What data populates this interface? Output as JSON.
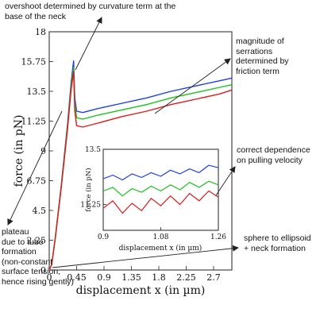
{
  "chart_data": {
    "type": "line",
    "xlabel": "displacement x (in µm)",
    "ylabel": "force (in pN)",
    "xlim": [
      0,
      3.0
    ],
    "ylim": [
      0,
      18
    ],
    "xticks": [
      "0",
      "0.45",
      "0.9",
      "1.35",
      "1.8",
      "2.25",
      "2.7"
    ],
    "xtick_values": [
      0,
      0.45,
      0.9,
      1.35,
      1.8,
      2.25,
      2.7
    ],
    "yticks": [
      "0",
      "2.25",
      "4.5",
      "6.75",
      "9",
      "11.25",
      "13.5",
      "15.75",
      "18"
    ],
    "ytick_values": [
      0,
      2.25,
      4.5,
      6.75,
      9,
      11.25,
      13.5,
      15.75,
      18
    ],
    "grid": false,
    "series": [
      {
        "color": "#1f3fe0",
        "x": [
          0,
          0.04,
          0.1,
          0.2,
          0.3,
          0.36,
          0.4,
          0.42,
          0.45,
          0.55,
          0.8,
          1.2,
          1.6,
          2.0,
          2.4,
          2.8,
          3.0
        ],
        "y": [
          0,
          0.4,
          2.5,
          6.5,
          11.0,
          14.2,
          15.8,
          13.0,
          12.0,
          11.9,
          12.2,
          12.6,
          13.0,
          13.5,
          13.9,
          14.3,
          14.5
        ]
      },
      {
        "color": "#19c219",
        "x": [
          0,
          0.04,
          0.1,
          0.2,
          0.3,
          0.36,
          0.4,
          0.42,
          0.45,
          0.55,
          0.8,
          1.2,
          1.6,
          2.0,
          2.4,
          2.8,
          3.0
        ],
        "y": [
          0,
          0.4,
          2.5,
          6.4,
          10.8,
          13.9,
          15.3,
          12.6,
          11.5,
          11.4,
          11.7,
          12.1,
          12.5,
          13.0,
          13.4,
          13.8,
          14.0
        ]
      },
      {
        "color": "#e01a1a",
        "x": [
          0,
          0.04,
          0.1,
          0.2,
          0.3,
          0.36,
          0.4,
          0.42,
          0.45,
          0.55,
          0.8,
          1.2,
          1.6,
          2.0,
          2.4,
          2.8,
          3.0
        ],
        "y": [
          0,
          0.4,
          2.4,
          6.3,
          10.6,
          13.6,
          15.0,
          12.0,
          10.9,
          10.8,
          11.1,
          11.6,
          12.0,
          12.5,
          12.9,
          13.3,
          13.6
        ]
      }
    ],
    "inset": {
      "type": "line",
      "xlabel": "displacement x (in µm)",
      "ylabel": "force (in pN)",
      "xlim": [
        0.9,
        1.26
      ],
      "ylim": [
        10.2,
        13.5
      ],
      "xticks": [
        "0.9",
        "1.08",
        "1.26"
      ],
      "xtick_values": [
        0.9,
        1.08,
        1.26
      ],
      "yticks": [
        "11.25",
        "13.5"
      ],
      "ytick_values": [
        11.25,
        13.5
      ],
      "series": [
        {
          "color": "#1f3fe0",
          "x": [
            0.9,
            0.93,
            0.96,
            0.99,
            1.02,
            1.05,
            1.08,
            1.11,
            1.14,
            1.17,
            1.2,
            1.23,
            1.26
          ],
          "y": [
            12.3,
            12.45,
            12.25,
            12.5,
            12.35,
            12.55,
            12.4,
            12.65,
            12.5,
            12.7,
            12.55,
            12.85,
            12.75
          ]
        },
        {
          "color": "#19c219",
          "x": [
            0.9,
            0.93,
            0.96,
            0.99,
            1.02,
            1.05,
            1.08,
            1.11,
            1.14,
            1.17,
            1.2,
            1.23,
            1.26
          ],
          "y": [
            11.8,
            11.95,
            11.6,
            11.9,
            11.75,
            12.0,
            11.8,
            12.05,
            11.85,
            12.15,
            11.95,
            12.2,
            12.05
          ]
        },
        {
          "color": "#e01a1a",
          "x": [
            0.9,
            0.93,
            0.96,
            0.99,
            1.02,
            1.05,
            1.08,
            1.11,
            1.14,
            1.17,
            1.2,
            1.23,
            1.26
          ],
          "y": [
            11.1,
            11.4,
            10.9,
            11.3,
            11.0,
            11.5,
            11.2,
            11.6,
            11.25,
            11.7,
            11.4,
            11.8,
            11.55
          ]
        }
      ]
    },
    "annotations": [
      "overshoot determined by curvature term at the\nbase of the neck",
      "magnitude of\nserrations\ndetermined by\nfriction term",
      "correct dependence\non pulling velocity",
      "plateau\ndue to tube\nformation\n(non-constant\nsurface tension,\nhence rising gently)",
      "sphere to ellipsoid\n+ neck formation"
    ]
  }
}
